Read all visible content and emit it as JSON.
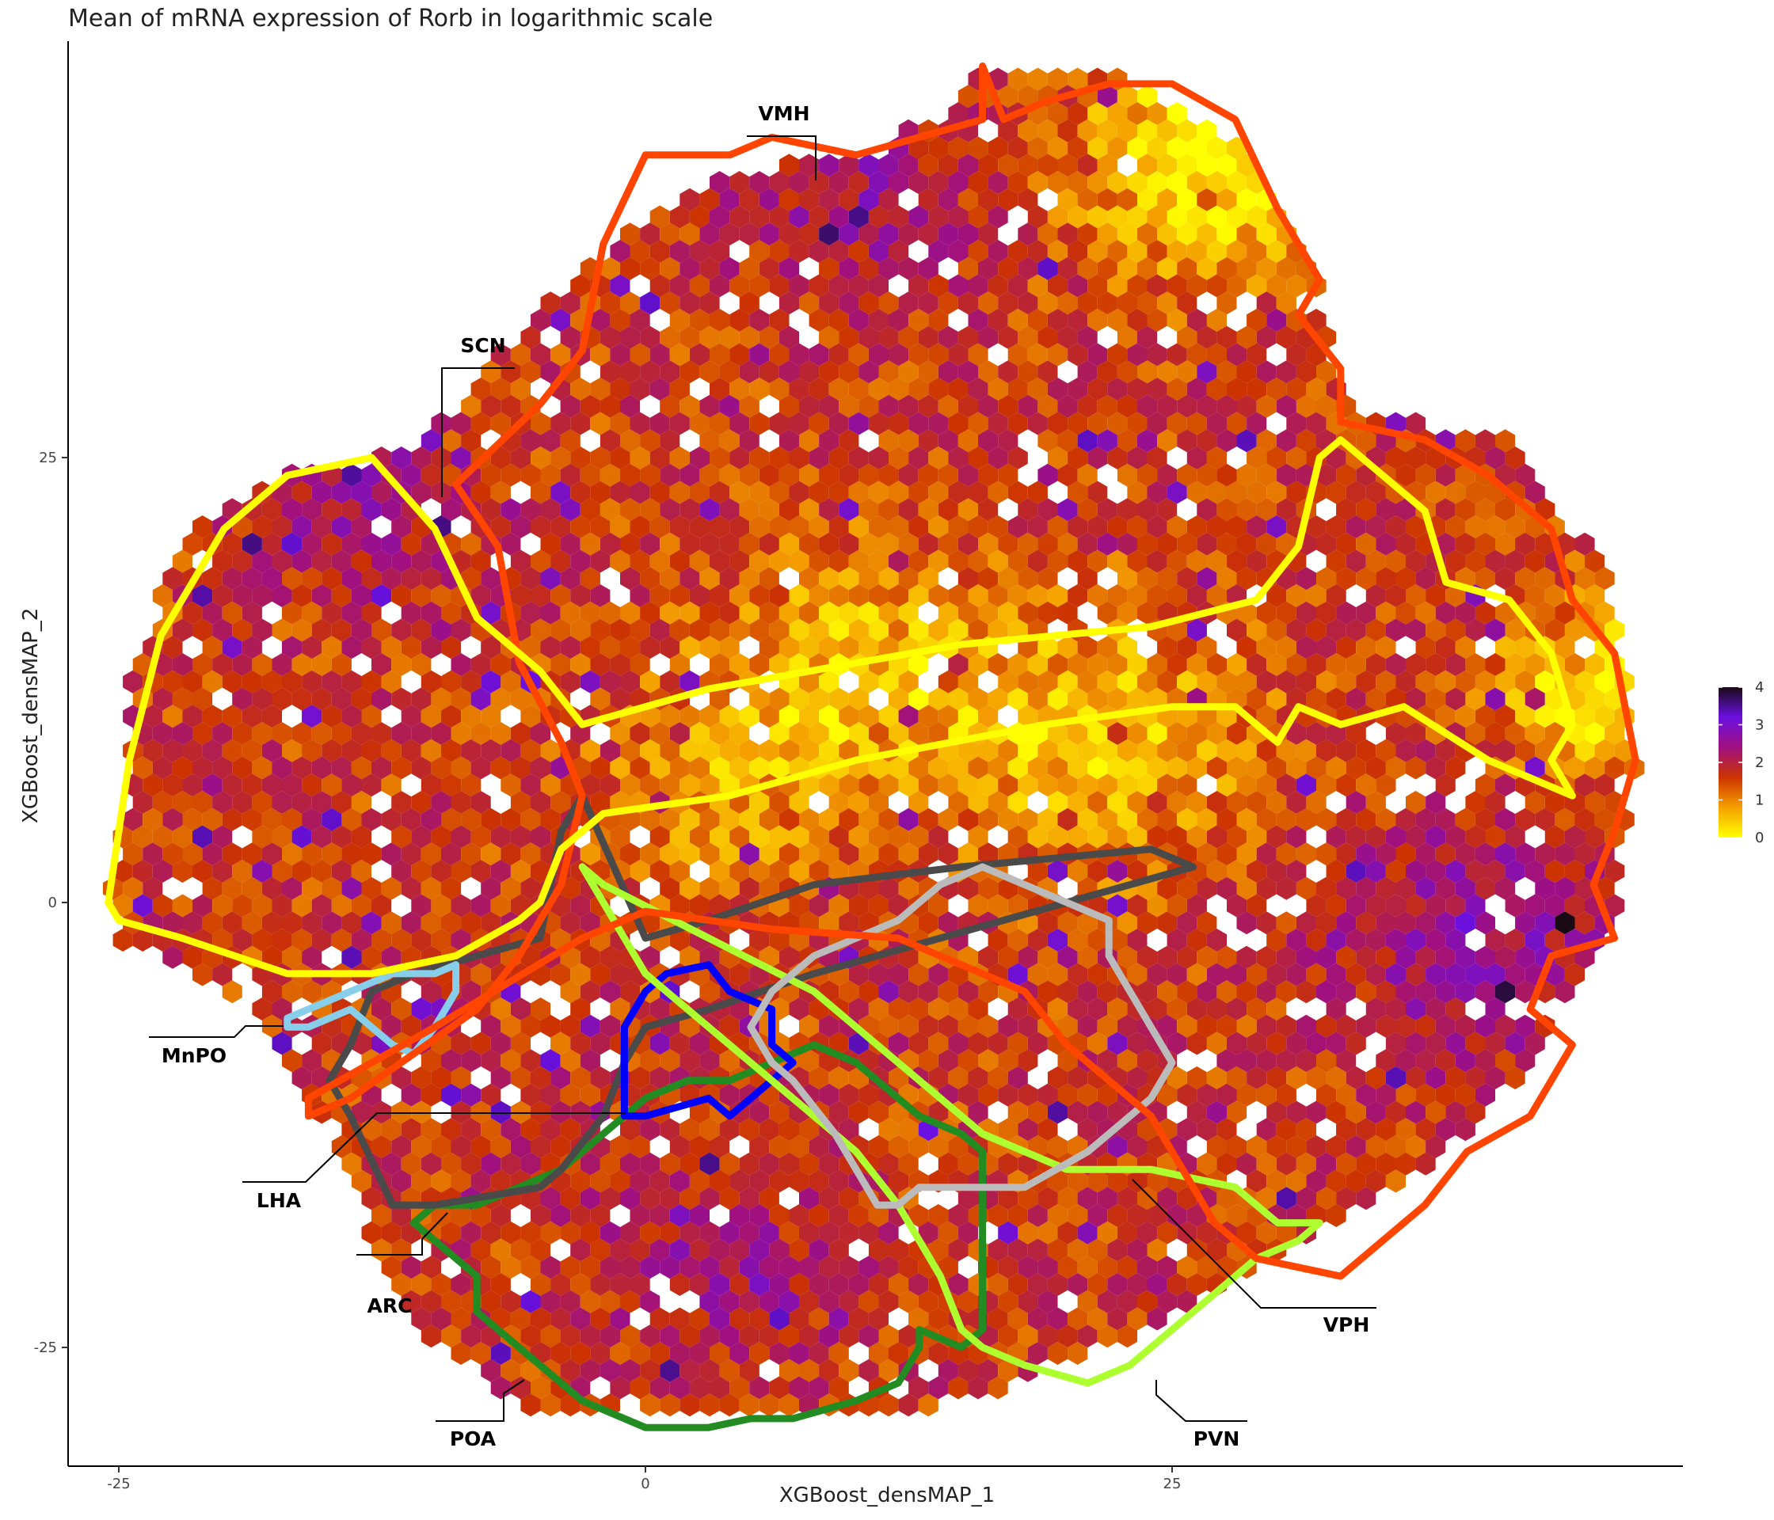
{
  "title": "Mean of mRNA expression of Rorb in logarithmic scale",
  "chart_data": {
    "type": "heatmap",
    "subtype": "hexbin with region outlines",
    "title": "Mean of mRNA expression of Rorb in logarithmic scale",
    "xlabel": "XGBoost_densMAP_1",
    "ylabel": "XGBoost_densMAP_2",
    "xlim": [
      -27,
      49
    ],
    "ylim": [
      -32,
      49
    ],
    "x_ticks": [
      -25,
      0,
      25
    ],
    "y_ticks": [
      -25,
      0,
      25
    ],
    "x_tick_labels": [
      "-25",
      "0",
      "25"
    ],
    "y_tick_labels": [
      "-25",
      "0",
      "25"
    ],
    "grid": false,
    "colorbar": {
      "position": "right",
      "ticks": [
        0,
        1,
        2,
        3,
        4
      ],
      "tick_labels": [
        "0",
        "1",
        "2",
        "3",
        "4"
      ],
      "colors": [
        "#ffff00",
        "#f5a000",
        "#cc3300",
        "#a01080",
        "#6a10e0",
        "#1a0a14"
      ]
    },
    "regions": [
      {
        "label": "VMH",
        "color": "#ff4500"
      },
      {
        "label": "SCN",
        "color": "#ffff00"
      },
      {
        "label": "MnPO",
        "color": "#87ceeb"
      },
      {
        "label": "LHA",
        "color": "#4a4a4a"
      },
      {
        "label": "ARC",
        "color": "#0000ff"
      },
      {
        "label": "POA",
        "color": "#228b22"
      },
      {
        "label": "PVN",
        "color": "#adff2f"
      },
      {
        "label": "VPH",
        "color": "#bbbbbb"
      }
    ]
  }
}
